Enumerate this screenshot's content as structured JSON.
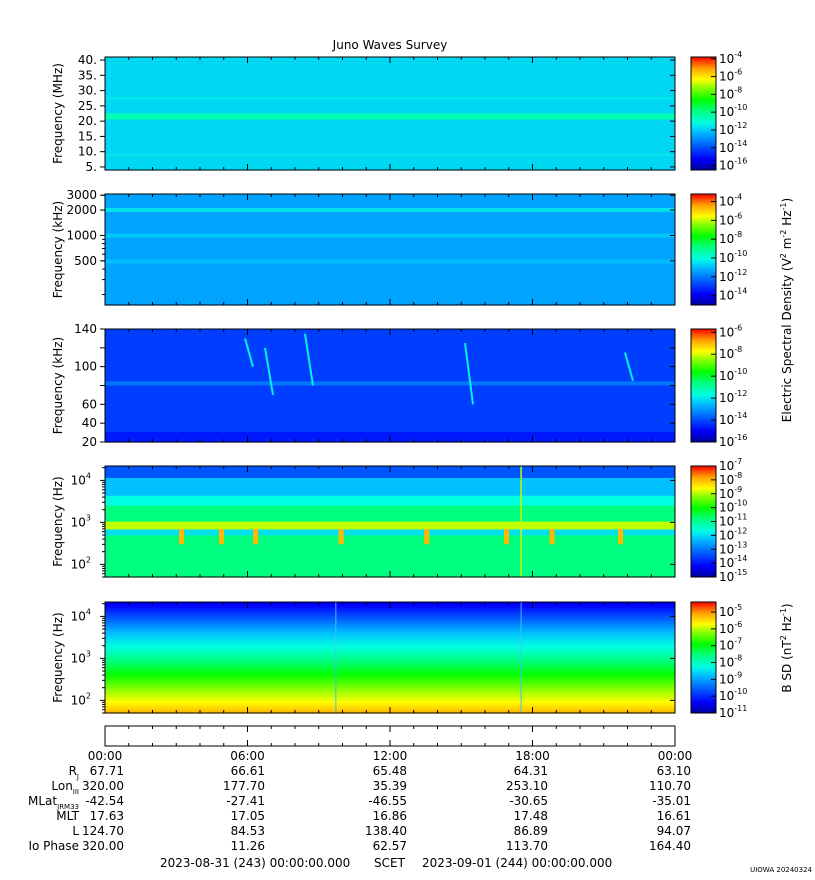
{
  "title": "Juno Waves Survey",
  "footer": {
    "start_time": "2023-08-31 (243) 00:00:00.000",
    "scet_label": "SCET",
    "end_time": "2023-09-01 (244) 00:00:00.000",
    "credit": "UIOWA 20240324"
  },
  "shared_colorbar_label": {
    "text": "Electric Spectral Density (V",
    "sup1": "2",
    "mid1": " m",
    "sup2": "-2",
    "mid2": " Hz",
    "sup3": "-1",
    "end": ")"
  },
  "magnetic_colorbar_label": {
    "text": "B SD (nT",
    "sup1": "2",
    "mid1": " Hz",
    "sup2": "-1",
    "end": ")"
  },
  "time_axis": {
    "ticks": [
      "00:00",
      "06:00",
      "12:00",
      "18:00",
      "00:00"
    ],
    "hours": [
      0,
      6,
      12,
      18,
      24
    ]
  },
  "ephemeris": [
    {
      "label": "R",
      "sub": "J",
      "values": [
        "67.71",
        "66.61",
        "65.48",
        "64.31",
        "63.10"
      ]
    },
    {
      "label": "Lon",
      "sub": "III",
      "values": [
        "320.00",
        "177.70",
        "35.39",
        "253.10",
        "110.70"
      ]
    },
    {
      "label": "MLat",
      "sub": "JRM33",
      "values": [
        "-42.54",
        "-27.41",
        "-46.55",
        "-30.65",
        "-35.01"
      ]
    },
    {
      "label": "MLT",
      "sub": "",
      "values": [
        "17.63",
        "17.05",
        "16.86",
        "17.48",
        "16.61"
      ]
    },
    {
      "label": "L",
      "sub": "",
      "values": [
        "124.70",
        "84.53",
        "138.40",
        "86.89",
        "94.07"
      ]
    },
    {
      "label": "Io Phase",
      "sub": "",
      "values": [
        "320.00",
        "11.26",
        "62.57",
        "113.70",
        "164.40"
      ]
    }
  ],
  "colors": {
    "colormap": [
      "#0000a0",
      "#0000ff",
      "#0060ff",
      "#00c0ff",
      "#00ffe0",
      "#00ff80",
      "#00ff00",
      "#80ff00",
      "#ffff00",
      "#ffa000",
      "#ff0000"
    ]
  },
  "chart_data": [
    {
      "type": "heatmap",
      "ylabel": "Frequency (MHz)",
      "yscale": "linear",
      "ylim": [
        4,
        41
      ],
      "yticks": [
        5,
        10,
        15,
        20,
        25,
        30,
        35,
        40
      ],
      "yticklabels": [
        "5.",
        "10.",
        "15.",
        "20.",
        "25.",
        "30.",
        "35.",
        "40."
      ],
      "colorbar": {
        "exponents": [
          -4,
          -6,
          -8,
          -10,
          -12,
          -14,
          -16
        ],
        "log_range": [
          -16.5,
          -3.8
        ]
      },
      "background_level": -12.2
    },
    {
      "type": "heatmap",
      "ylabel": "Frequency (kHz)",
      "yscale": "log",
      "ylim": [
        150,
        3100
      ],
      "yticks": [
        500,
        1000,
        2000,
        3000
      ],
      "yticklabels": [
        "500",
        "1000",
        "2000",
        "3000"
      ],
      "colorbar": {
        "exponents": [
          -4,
          -6,
          -8,
          -10,
          -12,
          -14
        ],
        "log_range": [
          -15,
          -3.2
        ]
      },
      "background_level": -11.8
    },
    {
      "type": "heatmap",
      "ylabel": "Frequency (kHz)",
      "yscale": "linear",
      "ylim": [
        20,
        140
      ],
      "yticks": [
        20,
        40,
        60,
        80,
        100,
        120,
        140
      ],
      "yticklabels": [
        "20",
        "40",
        "60",
        "",
        "100",
        "",
        "140"
      ],
      "colorbar": {
        "exponents": [
          -6,
          -8,
          -10,
          -12,
          -14,
          -16
        ],
        "log_range": [
          -16,
          -5.7
        ]
      },
      "background_level": -14.3
    },
    {
      "type": "heatmap",
      "ylabel": "Frequency (Hz)",
      "yscale": "log",
      "ylim": [
        50,
        22000
      ],
      "yticks": [
        100,
        1000,
        10000
      ],
      "yticklabels": [
        "10",
        "10",
        "10"
      ],
      "ytickexps": [
        "2",
        "3",
        "4"
      ],
      "colorbar": {
        "exponents": [
          -7,
          -8,
          -9,
          -10,
          -11,
          -12,
          -13,
          -14,
          -15
        ],
        "log_range": [
          -15,
          -7
        ]
      },
      "background_level": -11.5
    },
    {
      "type": "heatmap",
      "ylabel": "Frequency (Hz)",
      "yscale": "log",
      "ylim": [
        50,
        22000
      ],
      "yticks": [
        100,
        1000,
        10000
      ],
      "yticklabels": [
        "10",
        "10",
        "10"
      ],
      "ytickexps": [
        "2",
        "3",
        "4"
      ],
      "colorbar": {
        "exponents": [
          -5,
          -6,
          -7,
          -8,
          -9,
          -10,
          -11
        ],
        "log_range": [
          -11,
          -4.4
        ]
      },
      "background_level": -8.5
    }
  ]
}
